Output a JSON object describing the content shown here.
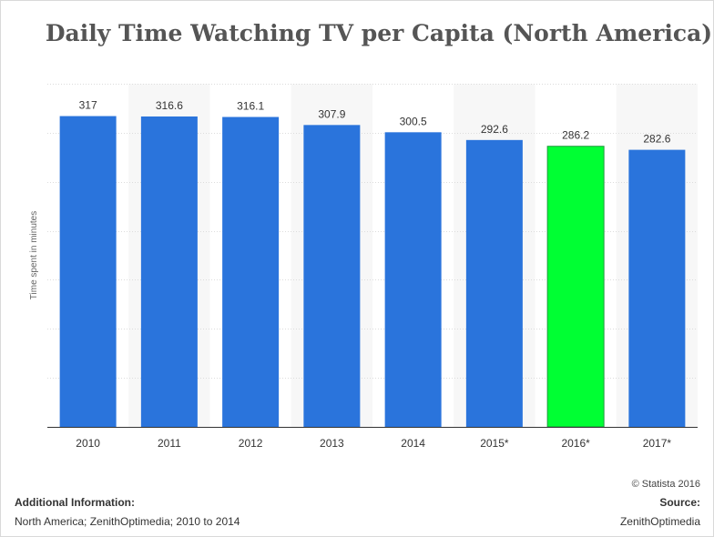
{
  "chart_data": {
    "type": "bar",
    "title": "Daily Time Watching TV per Capita (North America)",
    "ylabel": "Time spent in minutes",
    "categories": [
      "2010",
      "2011",
      "2012",
      "2013",
      "2014",
      "2015*",
      "2016*",
      "2017*"
    ],
    "values": [
      317,
      316.6,
      316.1,
      307.9,
      300.5,
      292.6,
      286.2,
      282.6
    ],
    "value_labels": [
      "317",
      "316.6",
      "316.1",
      "307.9",
      "300.5",
      "292.6",
      "286.2",
      "282.6"
    ],
    "highlight_index": 6,
    "ylim": [
      0,
      350
    ],
    "grid": true,
    "colors": {
      "bar": "#2a74dc",
      "highlight": "#00ff33",
      "highlight_border": "#1e9a3c",
      "band": "#f7f7f7",
      "grid": "#dcdcdc",
      "axis": "#333333"
    }
  },
  "footer": {
    "copyright": "© Statista 2016",
    "additional_information_label": "Additional Information:",
    "additional_information_text": "North America; ZenithOptimedia; 2010 to 2014",
    "source_label": "Source:",
    "source_text": "ZenithOptimedia"
  }
}
